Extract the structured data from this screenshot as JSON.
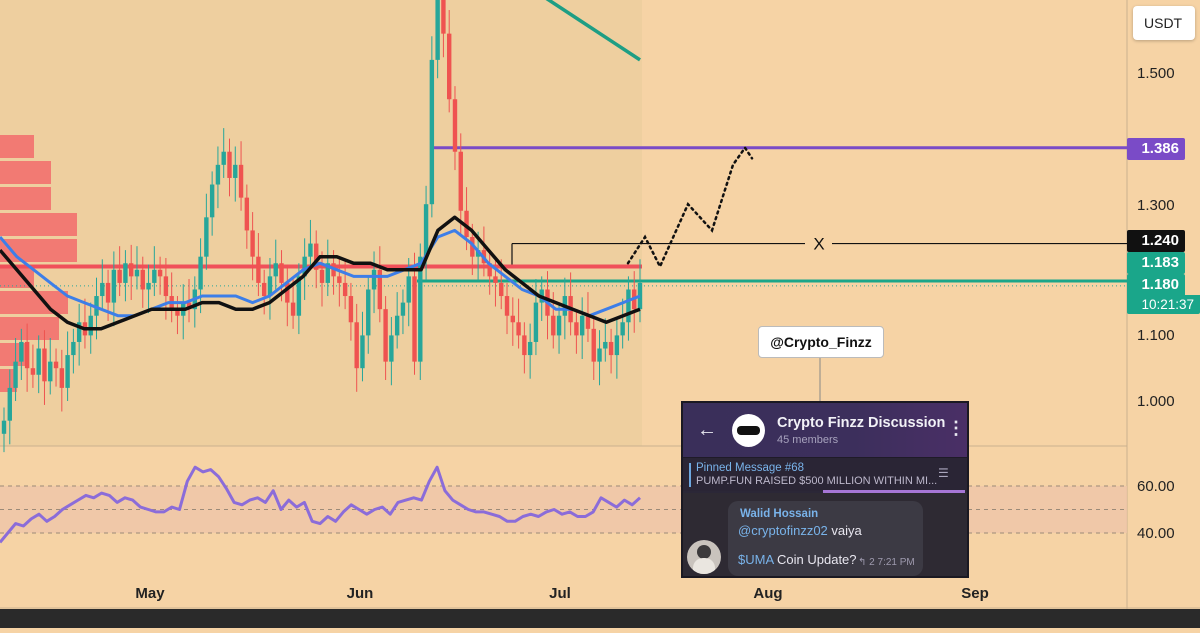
{
  "colors": {
    "background": "#f6d3a5",
    "history_shade": "#eecf9f",
    "bull_candle": "#26a69a",
    "bear_candle": "#ef5350",
    "ema_fast": "#3d7ee8",
    "ema_slow": "#111111",
    "ema_long": "#1e9e84",
    "resistance_line": "#f0505a",
    "target_line": "#7a4bc7",
    "support_line": "#1aa68a",
    "rsi_line": "#8b6cd9",
    "rsi_band": "#efc6a9"
  },
  "axis": {
    "quote": "USDT",
    "price_ticks": [
      "1.500",
      "1.300",
      "1.100",
      "1.000"
    ],
    "rsi_ticks": [
      "60.00",
      "40.00"
    ],
    "time_ticks": [
      "May",
      "Jun",
      "Jul",
      "Aug",
      "Sep"
    ]
  },
  "badges": {
    "target": "1.386",
    "x_level": "1.240",
    "ema_level": "1.183",
    "price": "1.180",
    "countdown": "10:21:37"
  },
  "annotations": {
    "x_label": "X",
    "handle": "@Crypto_Finzz"
  },
  "telegram": {
    "title": "Crypto Finzz Discussion",
    "members": "45 members",
    "pinned_title": "Pinned Message #68",
    "pinned_text": "PUMP.FUN RAISED $500 MILLION WITHIN MI...",
    "sender": "Walid Hossain",
    "mention": "@cryptofinzz02",
    "line1_rest": " vaiya",
    "ticker": "$UMA",
    "line2_rest": " Coin Update?",
    "meta": "2  7:21 PM",
    "back_icon": "arrow-left-icon",
    "menu_icon": "kebab-menu-icon"
  },
  "chart_data": {
    "type": "line",
    "title": "",
    "xlabel": "",
    "ylabel": "",
    "x_ticks": [
      "May",
      "Jun",
      "Jul",
      "Aug",
      "Sep"
    ],
    "ylim": [
      0.93,
      1.66
    ],
    "rsi_ylim": [
      20,
      80
    ],
    "rsi_band": [
      40,
      60
    ],
    "last_price": 1.18,
    "levels": {
      "target": 1.386,
      "x_level": 1.24,
      "resistance": 1.205,
      "support": 1.183
    },
    "close": [
      0.97,
      1.02,
      1.06,
      1.09,
      1.05,
      1.04,
      1.08,
      1.03,
      1.06,
      1.05,
      1.02,
      1.07,
      1.09,
      1.12,
      1.1,
      1.13,
      1.16,
      1.18,
      1.15,
      1.2,
      1.18,
      1.21,
      1.19,
      1.2,
      1.17,
      1.18,
      1.2,
      1.19,
      1.16,
      1.14,
      1.13,
      1.15,
      1.14,
      1.17,
      1.22,
      1.28,
      1.33,
      1.36,
      1.38,
      1.34,
      1.36,
      1.31,
      1.26,
      1.22,
      1.18,
      1.16,
      1.19,
      1.21,
      1.18,
      1.15,
      1.13,
      1.19,
      1.22,
      1.24,
      1.2,
      1.18,
      1.21,
      1.19,
      1.18,
      1.16,
      1.12,
      1.05,
      1.1,
      1.17,
      1.2,
      1.14,
      1.06,
      1.1,
      1.13,
      1.15,
      1.19,
      1.06,
      1.22,
      1.3,
      1.52,
      1.63,
      1.56,
      1.46,
      1.38,
      1.29,
      1.25,
      1.22,
      1.23,
      1.21,
      1.19,
      1.18,
      1.16,
      1.13,
      1.12,
      1.1,
      1.07,
      1.09,
      1.15,
      1.17,
      1.13,
      1.1,
      1.13,
      1.16,
      1.12,
      1.1,
      1.13,
      1.11,
      1.06,
      1.08,
      1.09,
      1.07,
      1.1,
      1.12,
      1.17,
      1.14,
      1.18
    ],
    "open": [
      0.95,
      0.97,
      1.02,
      1.06,
      1.09,
      1.05,
      1.04,
      1.08,
      1.03,
      1.06,
      1.05,
      1.02,
      1.07,
      1.09,
      1.12,
      1.1,
      1.13,
      1.16,
      1.18,
      1.15,
      1.2,
      1.18,
      1.21,
      1.19,
      1.2,
      1.17,
      1.18,
      1.2,
      1.19,
      1.16,
      1.14,
      1.13,
      1.15,
      1.14,
      1.17,
      1.22,
      1.28,
      1.33,
      1.36,
      1.38,
      1.34,
      1.36,
      1.31,
      1.26,
      1.22,
      1.18,
      1.16,
      1.19,
      1.21,
      1.18,
      1.15,
      1.13,
      1.19,
      1.22,
      1.24,
      1.2,
      1.18,
      1.21,
      1.19,
      1.18,
      1.16,
      1.12,
      1.05,
      1.1,
      1.17,
      1.2,
      1.14,
      1.06,
      1.1,
      1.13,
      1.15,
      1.19,
      1.06,
      1.22,
      1.3,
      1.52,
      1.63,
      1.56,
      1.46,
      1.38,
      1.29,
      1.25,
      1.22,
      1.23,
      1.21,
      1.19,
      1.18,
      1.16,
      1.13,
      1.12,
      1.1,
      1.07,
      1.09,
      1.15,
      1.17,
      1.13,
      1.1,
      1.13,
      1.16,
      1.12,
      1.1,
      1.13,
      1.11,
      1.06,
      1.08,
      1.09,
      1.07,
      1.1,
      1.12,
      1.17,
      1.14
    ],
    "ema_fast": [
      1.25,
      1.22,
      1.2,
      1.18,
      1.16,
      1.15,
      1.14,
      1.13,
      1.13,
      1.14,
      1.15,
      1.15,
      1.16,
      1.16,
      1.16,
      1.15,
      1.16,
      1.18,
      1.2,
      1.21,
      1.2,
      1.19,
      1.19,
      1.19,
      1.2,
      1.21,
      1.25,
      1.26,
      1.24,
      1.21,
      1.19,
      1.17,
      1.16,
      1.14,
      1.14,
      1.13,
      1.14,
      1.15,
      1.16
    ],
    "ema_slow": [
      1.23,
      1.2,
      1.17,
      1.14,
      1.12,
      1.11,
      1.11,
      1.12,
      1.13,
      1.14,
      1.14,
      1.14,
      1.15,
      1.15,
      1.14,
      1.14,
      1.15,
      1.17,
      1.19,
      1.22,
      1.22,
      1.21,
      1.21,
      1.2,
      1.2,
      1.2,
      1.26,
      1.28,
      1.26,
      1.23,
      1.2,
      1.18,
      1.16,
      1.15,
      1.14,
      1.13,
      1.12,
      1.13,
      1.14
    ],
    "ema_long": [
      1.66,
      1.64,
      1.61,
      1.58,
      1.55,
      1.52
    ],
    "projection": [
      1.21,
      1.25,
      1.205,
      1.3,
      1.26,
      1.36,
      1.386,
      1.37
    ],
    "volume_profile": [
      0.4,
      0.6,
      0.6,
      0.9,
      0.9,
      0.4,
      0.8,
      0.7,
      0.3,
      0.2
    ],
    "rsi": [
      36,
      40,
      44,
      43,
      46,
      48,
      45,
      47,
      50,
      52,
      54,
      56,
      55,
      57,
      56,
      53,
      55,
      54,
      51,
      50,
      49,
      49,
      51,
      50,
      62,
      68,
      66,
      67,
      64,
      59,
      53,
      52,
      54,
      55,
      53,
      58,
      50,
      54,
      51,
      53,
      45,
      44,
      47,
      45,
      49,
      52,
      50,
      48,
      50,
      51,
      48,
      53,
      54,
      55,
      54,
      62,
      68,
      58,
      54,
      52,
      50,
      49,
      49,
      48,
      47,
      45,
      45,
      47,
      48,
      47,
      49,
      50,
      48,
      49,
      47,
      47,
      49,
      55,
      53,
      51,
      54,
      52,
      55
    ]
  }
}
